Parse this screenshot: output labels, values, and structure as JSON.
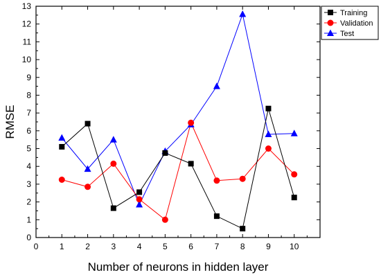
{
  "chart_data": {
    "type": "line",
    "title": "",
    "xlabel": "Number of neurons in hidden layer",
    "ylabel": "RMSE",
    "xlim": [
      0,
      11
    ],
    "ylim": [
      0,
      13
    ],
    "x_ticks": [
      "0",
      "1",
      "2",
      "3",
      "4",
      "5",
      "6",
      "7",
      "8",
      "9",
      "10"
    ],
    "y_ticks": [
      "0",
      "1",
      "2",
      "3",
      "4",
      "5",
      "6",
      "7",
      "8",
      "9",
      "10",
      "11",
      "12",
      "13"
    ],
    "x": [
      1,
      2,
      3,
      4,
      5,
      6,
      7,
      8,
      9,
      10
    ],
    "grid": false,
    "legend_position": "top-right",
    "series": [
      {
        "name": "Training",
        "color": "#000000",
        "marker": "square",
        "values": [
          5.1,
          6.4,
          1.65,
          2.55,
          4.75,
          4.15,
          1.2,
          0.5,
          7.25,
          2.25
        ]
      },
      {
        "name": "Validation",
        "color": "#ff0000",
        "marker": "circle",
        "values": [
          3.25,
          2.85,
          4.15,
          2.15,
          1.0,
          6.45,
          3.2,
          3.3,
          5.0,
          3.55
        ]
      },
      {
        "name": "Test",
        "color": "#0000ff",
        "marker": "triangle",
        "values": [
          5.6,
          3.85,
          5.5,
          1.85,
          4.85,
          6.35,
          8.5,
          12.55,
          5.8,
          5.85
        ]
      }
    ]
  }
}
